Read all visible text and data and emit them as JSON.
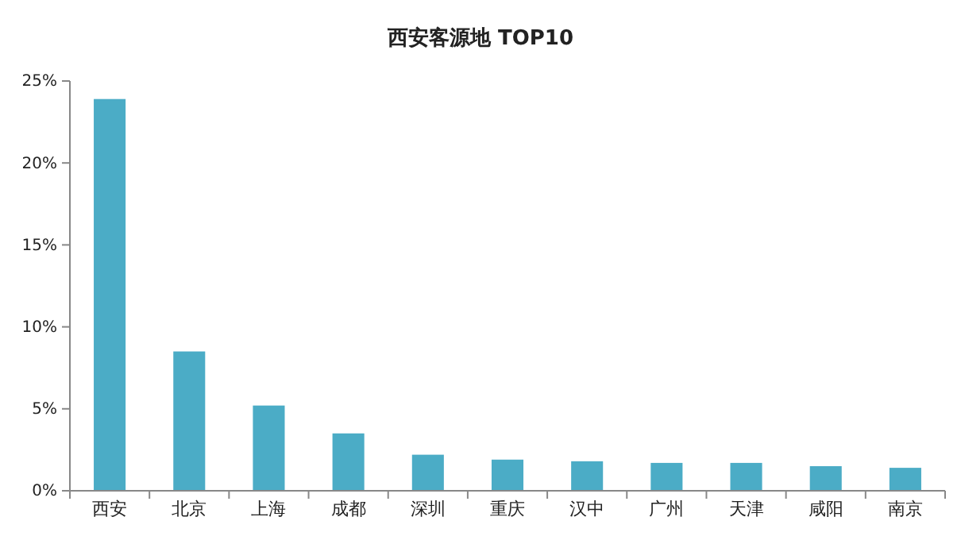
{
  "chart_data": {
    "type": "bar",
    "title": "西安客源地 TOP10",
    "categories": [
      "西安",
      "北京",
      "上海",
      "成都",
      "深圳",
      "重庆",
      "汉中",
      "广州",
      "天津",
      "咸阳",
      "南京"
    ],
    "values": [
      23.9,
      8.5,
      5.2,
      3.5,
      2.2,
      1.9,
      1.8,
      1.7,
      1.7,
      1.5,
      1.4
    ],
    "color": "#4bacc6",
    "ylim": [
      0,
      25
    ],
    "yticks": [
      {
        "value": 0,
        "label": "0%"
      },
      {
        "value": 5,
        "label": "5%"
      },
      {
        "value": 10,
        "label": "10%"
      },
      {
        "value": 15,
        "label": "15%"
      },
      {
        "value": 20,
        "label": "20%"
      },
      {
        "value": 25,
        "label": "25%"
      }
    ],
    "grid": false,
    "legend": false
  }
}
